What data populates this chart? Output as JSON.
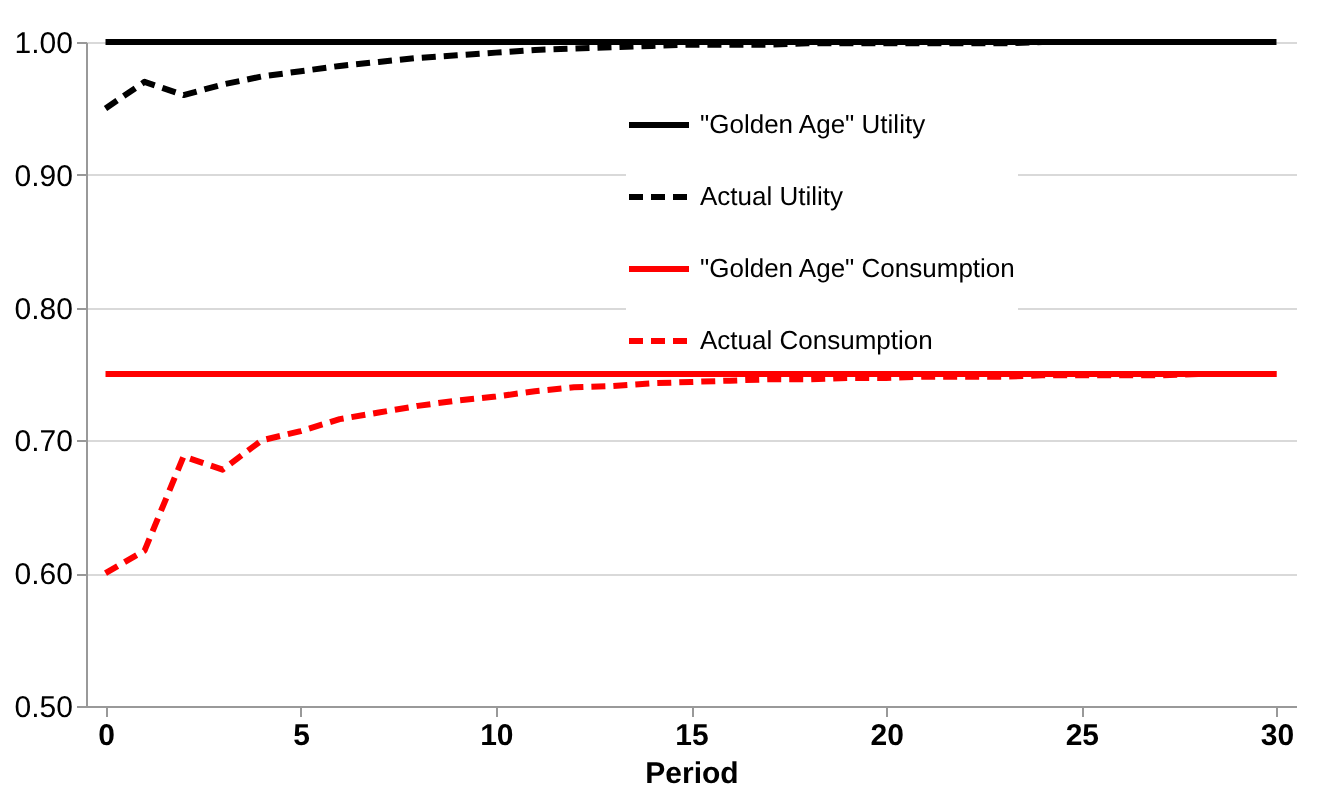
{
  "chart_data": {
    "type": "line",
    "xlabel": "Period",
    "x": [
      0,
      1,
      2,
      3,
      4,
      5,
      6,
      7,
      8,
      9,
      10,
      11,
      12,
      13,
      14,
      15,
      16,
      17,
      18,
      19,
      20,
      21,
      22,
      23,
      24,
      25,
      26,
      27,
      28,
      29,
      30
    ],
    "series": [
      {
        "name": "\"Golden Age\" Utility",
        "color": "#000000",
        "line_style": "solid",
        "values": [
          1.0,
          1.0,
          1.0,
          1.0,
          1.0,
          1.0,
          1.0,
          1.0,
          1.0,
          1.0,
          1.0,
          1.0,
          1.0,
          1.0,
          1.0,
          1.0,
          1.0,
          1.0,
          1.0,
          1.0,
          1.0,
          1.0,
          1.0,
          1.0,
          1.0,
          1.0,
          1.0,
          1.0,
          1.0,
          1.0,
          1.0
        ]
      },
      {
        "name": "Actual Utility",
        "color": "#000000",
        "line_style": "dashed",
        "values": [
          0.95,
          0.97,
          0.96,
          0.968,
          0.974,
          0.978,
          0.982,
          0.985,
          0.988,
          0.99,
          0.992,
          0.994,
          0.995,
          0.996,
          0.997,
          0.998,
          0.998,
          0.998,
          0.999,
          0.999,
          0.999,
          0.999,
          0.999,
          0.999,
          1.0,
          1.0,
          1.0,
          1.0,
          1.0,
          1.0,
          1.0
        ]
      },
      {
        "name": "\"Golden Age\" Consumption",
        "color": "#ff0000",
        "line_style": "solid",
        "values": [
          0.75,
          0.75,
          0.75,
          0.75,
          0.75,
          0.75,
          0.75,
          0.75,
          0.75,
          0.75,
          0.75,
          0.75,
          0.75,
          0.75,
          0.75,
          0.75,
          0.75,
          0.75,
          0.75,
          0.75,
          0.75,
          0.75,
          0.75,
          0.75,
          0.75,
          0.75,
          0.75,
          0.75,
          0.75,
          0.75,
          0.75
        ]
      },
      {
        "name": "Actual Consumption",
        "color": "#ff0000",
        "line_style": "dashed",
        "values": [
          0.6,
          0.617,
          0.688,
          0.678,
          0.7,
          0.707,
          0.716,
          0.721,
          0.726,
          0.73,
          0.733,
          0.737,
          0.74,
          0.741,
          0.743,
          0.744,
          0.745,
          0.746,
          0.746,
          0.747,
          0.747,
          0.748,
          0.748,
          0.748,
          0.749,
          0.749,
          0.749,
          0.749,
          0.75,
          0.75,
          0.75
        ]
      }
    ],
    "xlim": [
      -0.5,
      30.5
    ],
    "xticks": [
      0,
      5,
      10,
      15,
      20,
      25,
      30
    ],
    "ylim": [
      0.5,
      1.0
    ],
    "yticks": [
      {
        "value": 0.5,
        "label": "0.50"
      },
      {
        "value": 0.6,
        "label": "0.60"
      },
      {
        "value": 0.7,
        "label": "0.70"
      },
      {
        "value": 0.8,
        "label": "0.80"
      },
      {
        "value": 0.9,
        "label": "0.90"
      },
      {
        "value": 1.0,
        "label": "1.00"
      }
    ],
    "grid": "y",
    "legend": "top right"
  }
}
